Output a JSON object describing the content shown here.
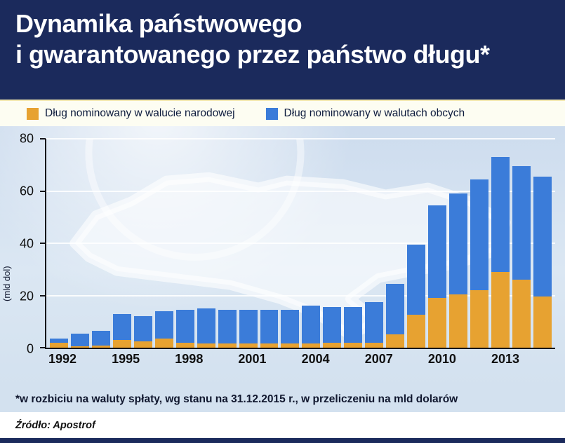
{
  "header": {
    "title_line1": "Dynamika państwowego",
    "title_line2": "i gwarantowanego przez państwo długu*"
  },
  "legend": {
    "items": [
      {
        "label": "Dług nominowany w walucie narodowej",
        "color": "#e7a231"
      },
      {
        "label": "Dług nominowany w walutach obcych",
        "color": "#3b7cd9"
      }
    ]
  },
  "chart_data": {
    "type": "bar",
    "stacked": true,
    "title": "Dynamika państwowego i gwarantowanego przez państwo długu",
    "categories": [
      1992,
      1993,
      1994,
      1995,
      1996,
      1997,
      1998,
      1999,
      2000,
      2001,
      2002,
      2003,
      2004,
      2005,
      2006,
      2007,
      2008,
      2009,
      2010,
      2011,
      2012,
      2013,
      2014,
      2015
    ],
    "series": [
      {
        "name": "Dług nominowany w walucie narodowej",
        "color": "#e7a231",
        "values": [
          2.0,
          0.5,
          0.7,
          3.0,
          2.5,
          3.5,
          2.0,
          1.5,
          1.5,
          1.5,
          1.5,
          1.5,
          1.5,
          2.0,
          2.0,
          2.0,
          5.0,
          12.5,
          19.0,
          20.5,
          22.0,
          29.0,
          26.0,
          19.5
        ]
      },
      {
        "name": "Dług nominowany w walutach obcych",
        "color": "#3b7cd9",
        "values": [
          1.5,
          5.0,
          5.8,
          10.0,
          9.5,
          10.5,
          12.5,
          13.5,
          13.0,
          13.0,
          13.0,
          13.0,
          14.5,
          13.5,
          13.5,
          15.5,
          19.5,
          27.0,
          35.5,
          38.5,
          42.5,
          44.0,
          43.5,
          46.0
        ]
      }
    ],
    "xlabel": "",
    "ylabel": "(mld dol)",
    "ylim": [
      0,
      80
    ],
    "yticks": [
      0,
      20,
      40,
      60,
      80
    ],
    "xticks": [
      1992,
      1995,
      1998,
      2001,
      2004,
      2007,
      2010,
      2013
    ],
    "grid": true,
    "legend_position": "top"
  },
  "footnote": "*w rozbiciu na waluty spłaty, wg stanu na 31.12.2015 r., w przeliczeniu na mld dolarów",
  "source": "Źródło: Apostrof"
}
